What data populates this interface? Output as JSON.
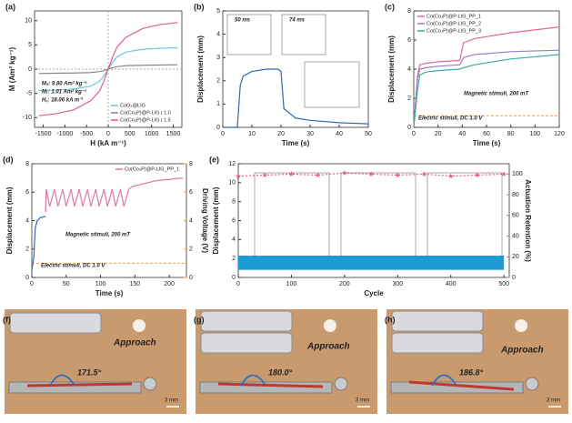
{
  "chart_data": [
    {
      "type": "line",
      "panel_label": "(a)",
      "x_label": "H (kA m⁻¹)",
      "y_label": "M (Am² kg⁻¹)",
      "xlim": [
        -1700,
        1700
      ],
      "xticks": [
        -1500,
        -1000,
        -500,
        0,
        500,
        1000,
        1500
      ],
      "ylim": [
        -12,
        12
      ],
      "yticks": [
        -10,
        -5,
        0,
        5,
        10
      ],
      "legend": "lower right",
      "x": [
        -1600,
        -1200,
        -800,
        -400,
        -200,
        -100,
        0,
        100,
        200,
        400,
        800,
        1200,
        1600
      ],
      "series": [
        {
          "name": "CoO₂@LIG",
          "color": "#6cc6e0",
          "values": [
            -4.4,
            -4.3,
            -4.1,
            -3.5,
            -2.5,
            -1.4,
            0,
            1.4,
            2.5,
            3.5,
            4.1,
            4.3,
            4.4
          ]
        },
        {
          "name": "Co(Co₃P)@P-LIG | 1.0",
          "color": "#888888",
          "values": [
            -0.9,
            -0.85,
            -0.8,
            -0.7,
            -0.5,
            -0.3,
            0,
            0.3,
            0.5,
            0.7,
            0.8,
            0.85,
            0.9
          ]
        },
        {
          "name": "Co(Co₃P)@P-LIG | 1.5",
          "color": "#e0607e",
          "values": [
            -9.6,
            -9.2,
            -8.4,
            -6.5,
            -4.5,
            -2.5,
            0,
            2.5,
            4.5,
            6.5,
            8.4,
            9.2,
            9.6
          ]
        }
      ],
      "annotations": [
        {
          "text": "Mₛ: 9.80 Am² kg⁻¹",
          "color": "#b0405a"
        },
        {
          "text": "Mᵣ: 1.01 Am² kg⁻¹",
          "color": "#b0405a"
        },
        {
          "text": "H꜀: 18.06 kA m⁻¹",
          "color": "#b0405a"
        }
      ]
    },
    {
      "type": "line",
      "panel_label": "(b)",
      "x_label": "Time (s)",
      "y_label": "Displacement (mm)",
      "xlim": [
        0,
        50
      ],
      "xticks": [
        0,
        10,
        20,
        30,
        40,
        50
      ],
      "ylim": [
        0,
        5
      ],
      "yticks": [
        0,
        1,
        2,
        3,
        4,
        5
      ],
      "x": [
        0,
        5,
        6,
        7,
        10,
        15,
        19,
        20,
        21,
        25,
        30,
        40,
        50
      ],
      "series": [
        {
          "color": "#2d6cb5",
          "values": [
            0,
            0,
            1.8,
            2.2,
            2.4,
            2.5,
            2.5,
            2.4,
            0.8,
            0.4,
            0.3,
            0.2,
            0.15
          ]
        }
      ],
      "annotations": [
        {
          "text": "50 ms",
          "color": "#222222"
        },
        {
          "text": "74 ms",
          "color": "#222222"
        }
      ]
    },
    {
      "type": "line",
      "panel_label": "(c)",
      "x_label": "Time (s)",
      "y_label": "Displacement (mm)",
      "xlim": [
        0,
        120
      ],
      "xticks": [
        0,
        20,
        40,
        60,
        80,
        100,
        120
      ],
      "ylim": [
        0,
        8
      ],
      "yticks": [
        0,
        2,
        4,
        6,
        8
      ],
      "legend": "upper left",
      "x": [
        0,
        3,
        5,
        10,
        20,
        38,
        41,
        50,
        80,
        120
      ],
      "series": [
        {
          "name": "Co(Co₃P)@P-LIG_PP_1",
          "color": "#e46a8d",
          "values": [
            0,
            3.5,
            4.3,
            4.4,
            4.5,
            4.6,
            5.8,
            6.1,
            6.5,
            6.9
          ]
        },
        {
          "name": "Co(Co₃P)@P-LIG_PP_2",
          "color": "#9b7ec8",
          "values": [
            0,
            3.3,
            4.0,
            4.1,
            4.2,
            4.3,
            4.8,
            5.0,
            5.2,
            5.3
          ]
        },
        {
          "name": "Co(Co₃P)@P-LIG_PP_3",
          "color": "#3aaea5",
          "values": [
            0,
            2.5,
            3.6,
            3.8,
            3.9,
            4.0,
            4.1,
            4.3,
            4.7,
            5.0
          ]
        }
      ],
      "hline": {
        "value": 0.8,
        "color": "#f0a030"
      },
      "annotations": [
        {
          "text": "Magnetic stimuli, 200 mT",
          "color": "#2d6cb5"
        },
        {
          "text": "Electric stimuli, DC 1.0 V",
          "color": "#f0a030"
        }
      ]
    },
    {
      "type": "line",
      "panel_label": "(d)",
      "x_label": "Time (s)",
      "y_label": "Displacement (mm)",
      "y2_label": "Driving Voltage (V)",
      "y2_color": "#f0a030",
      "xlim": [
        0,
        225
      ],
      "xticks": [
        0,
        50,
        100,
        150,
        200
      ],
      "ylim": [
        0,
        8
      ],
      "yticks": [
        0,
        2,
        4,
        6,
        8
      ],
      "y2lim": [
        0,
        8
      ],
      "y2ticks": [
        0,
        2,
        4,
        6,
        8
      ],
      "legend": "upper right",
      "series": [
        {
          "color": "#2f66b3",
          "x": [
            0,
            3,
            5,
            8,
            12,
            20
          ],
          "values": [
            0.5,
            1.5,
            3.5,
            4.0,
            4.2,
            4.3
          ]
        },
        {
          "name": "Co(Co₃P)@P-LIG_PP_1",
          "color": "#e07a9c",
          "x": [
            20,
            21,
            26,
            33,
            38,
            45,
            50,
            57,
            62,
            69,
            74,
            81,
            86,
            93,
            98,
            105,
            110,
            117,
            122,
            129,
            134,
            141,
            146,
            180,
            220
          ],
          "values": [
            4.6,
            6.2,
            5.0,
            6.2,
            5.0,
            6.2,
            5.0,
            6.2,
            5.0,
            6.2,
            5.0,
            6.2,
            5.0,
            6.2,
            5.0,
            6.2,
            5.0,
            6.2,
            5.0,
            6.2,
            5.0,
            6.2,
            6.4,
            6.8,
            7.0
          ]
        }
      ],
      "hline": {
        "value": 1.0,
        "color": "#f0a030"
      },
      "annotations": [
        {
          "text": "Magnetic stimuli, 200 mT",
          "color": "#2d6cb5"
        },
        {
          "text": "Electric stimuli, DC 1.0 V",
          "color": "#f0a030"
        }
      ]
    },
    {
      "type": "line",
      "panel_label": "(e)",
      "x_label": "Cycle",
      "y_label": "Displacement (mm)",
      "ylabel_color": "#1e9ad6",
      "y2_label": "Actuation Retention (%)",
      "y2_color": "#e0607e",
      "xlim": [
        0,
        510
      ],
      "xticks": [
        0,
        100,
        200,
        300,
        400,
        500
      ],
      "ylim": [
        0,
        12
      ],
      "yticks": [
        0,
        2,
        4,
        6,
        8,
        10,
        12
      ],
      "y2lim": [
        0,
        110
      ],
      "y2ticks": [
        0,
        20,
        40,
        60,
        80,
        100
      ],
      "series": [
        {
          "color": "#1e9ad6",
          "x": [
            0,
            500
          ],
          "low": [
            0.8,
            0.8
          ],
          "high": [
            2.3,
            2.3
          ]
        },
        {
          "color": "#e0607e",
          "axis": "y2",
          "marker": "star",
          "x": [
            0,
            50,
            100,
            150,
            200,
            250,
            300,
            350,
            400,
            450,
            500
          ],
          "values": [
            98,
            99,
            100,
            99,
            101,
            100,
            99,
            100,
            98,
            99,
            100
          ]
        }
      ]
    }
  ],
  "photos": [
    {
      "label": "(f)",
      "angle": "171.5°",
      "approach": "Approach",
      "scale": "3 mm"
    },
    {
      "label": "(g)",
      "angle": "180.0°",
      "approach": "Approach",
      "scale": "3 mm"
    },
    {
      "label": "(h)",
      "angle": "186.8°",
      "approach": "Approach",
      "scale": "3 mm"
    }
  ]
}
